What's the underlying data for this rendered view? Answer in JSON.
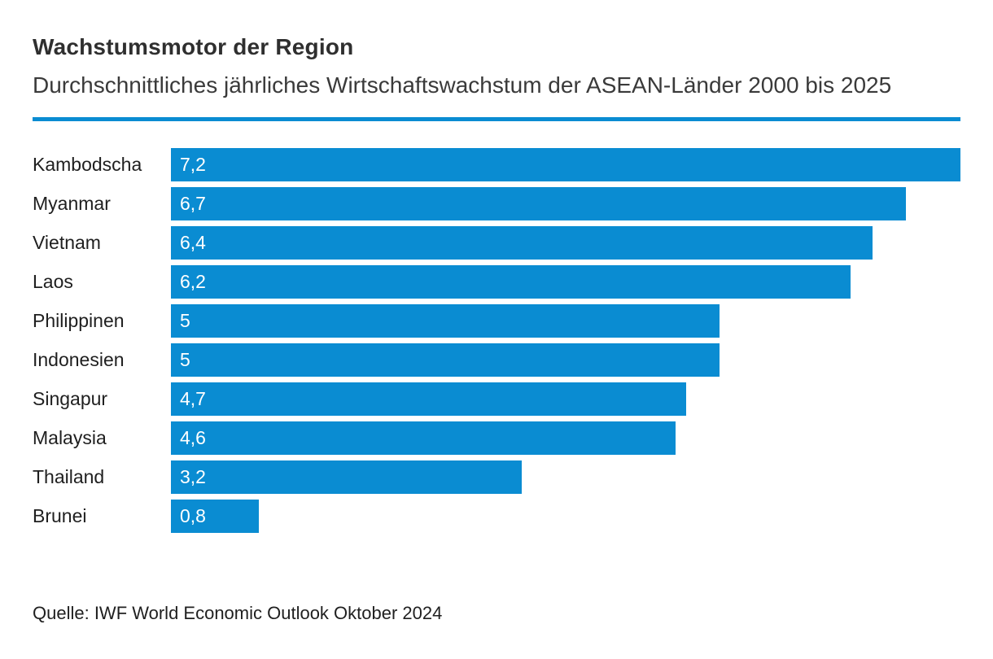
{
  "header": {
    "title": "Wachstumsmotor der Region",
    "subtitle": "Durchschnittliches jährliches Wirtschaftswachstum der ASEAN-Länder 2000 bis 2025"
  },
  "footer": {
    "source": "Quelle: IWF World Economic Outlook Oktober 2024"
  },
  "colors": {
    "accent_blue": "#0a8cd2",
    "title_text": "#2f2f2f",
    "label_text": "#1f1f1f",
    "value_text": "#ffffff",
    "background": "#ffffff"
  },
  "chart_data": {
    "type": "bar",
    "orientation": "horizontal",
    "title": "Wachstumsmotor der Region",
    "subtitle": "Durchschnittliches jährliches Wirtschaftswachstum der ASEAN-Länder 2000 bis 2025",
    "source": "Quelle: IWF World Economic Outlook Oktober 2024",
    "categories": [
      "Kambodscha",
      "Myanmar",
      "Vietnam",
      "Laos",
      "Philippinen",
      "Indonesien",
      "Singapur",
      "Malaysia",
      "Thailand",
      "Brunei"
    ],
    "values": [
      7.2,
      6.7,
      6.4,
      6.2,
      5,
      5,
      4.7,
      4.6,
      3.2,
      0.8
    ],
    "value_labels": [
      "7,2",
      "6,7",
      "6,4",
      "6,2",
      "5",
      "5",
      "4,7",
      "4,6",
      "3,2",
      "0,8"
    ],
    "xlabel": "",
    "ylabel": "",
    "xlim": [
      0,
      7.2
    ],
    "unit": "percent",
    "grid": false,
    "legend": null,
    "value_labels_position": "inside-start",
    "bar_color": "#0a8cd2"
  }
}
